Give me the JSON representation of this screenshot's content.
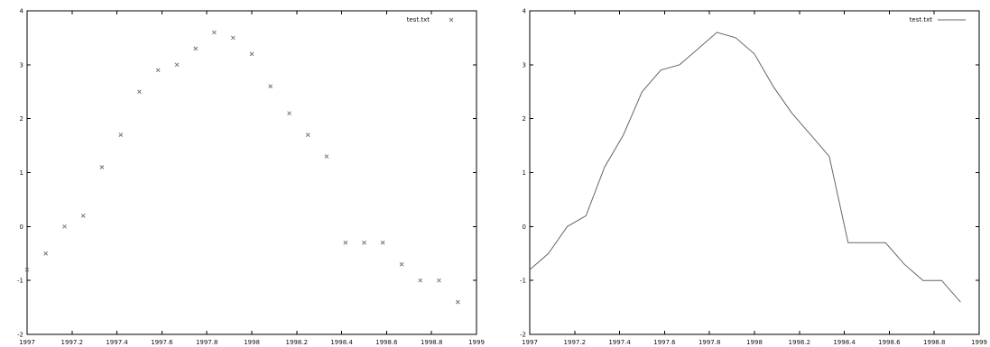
{
  "chart_data": [
    {
      "type": "scatter",
      "legend": "test.txt",
      "legend_position": "top-right",
      "grid": false,
      "xlim": [
        1997,
        1999
      ],
      "ylim": [
        -2,
        4
      ],
      "x_tick_labels": [
        "1997",
        "1997.2",
        "1997.4",
        "1997.6",
        "1997.8",
        "1998",
        "1998.2",
        "1998.4",
        "1998.6",
        "1998.8",
        "1999"
      ],
      "y_tick_labels": [
        "4",
        "3",
        "2",
        "1",
        "0",
        "-1",
        "-2"
      ],
      "x": [
        1997.0,
        1997.083,
        1997.167,
        1997.25,
        1997.333,
        1997.417,
        1997.5,
        1997.583,
        1997.667,
        1997.75,
        1997.833,
        1997.917,
        1998.0,
        1998.083,
        1998.167,
        1998.25,
        1998.333,
        1998.417,
        1998.5,
        1998.583,
        1998.667,
        1998.75,
        1998.833,
        1998.917
      ],
      "y": [
        -0.8,
        -0.5,
        0.0,
        0.2,
        1.1,
        1.7,
        2.5,
        2.9,
        3.0,
        3.3,
        3.6,
        3.5,
        3.2,
        2.6,
        2.1,
        1.7,
        1.3,
        -0.3,
        -0.3,
        -0.3,
        -0.7,
        -1.0,
        -1.0,
        -1.4
      ]
    },
    {
      "type": "line",
      "legend": "test.txt",
      "legend_position": "top-right",
      "grid": false,
      "xlim": [
        1997,
        1999
      ],
      "ylim": [
        -2,
        4
      ],
      "x_tick_labels": [
        "1997",
        "1997.2",
        "1997.4",
        "1997.6",
        "1997.8",
        "1998",
        "1998.2",
        "1998.4",
        "1998.6",
        "1998.8",
        "1999"
      ],
      "y_tick_labels": [
        "4",
        "3",
        "2",
        "1",
        "0",
        "-1",
        "-2"
      ],
      "x": [
        1997.0,
        1997.083,
        1997.167,
        1997.25,
        1997.333,
        1997.417,
        1997.5,
        1997.583,
        1997.667,
        1997.75,
        1997.833,
        1997.917,
        1998.0,
        1998.083,
        1998.167,
        1998.25,
        1998.333,
        1998.417,
        1998.5,
        1998.583,
        1998.667,
        1998.75,
        1998.833,
        1998.917
      ],
      "y": [
        -0.8,
        -0.5,
        0.0,
        0.2,
        1.1,
        1.7,
        2.5,
        2.9,
        3.0,
        3.3,
        3.6,
        3.5,
        3.2,
        2.6,
        2.1,
        1.7,
        1.3,
        -0.3,
        -0.3,
        -0.3,
        -0.7,
        -1.0,
        -1.0,
        -1.4
      ]
    }
  ]
}
